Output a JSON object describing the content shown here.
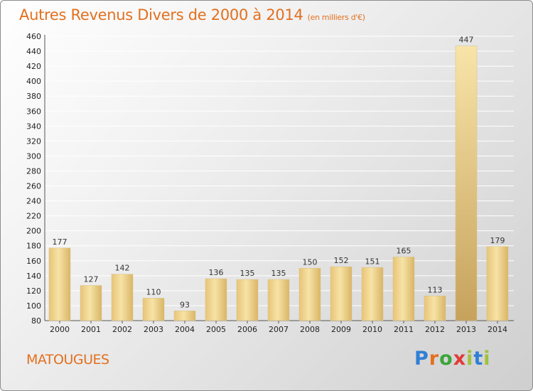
{
  "chart_data": {
    "type": "bar",
    "title": "Autres Revenus Divers de 2000 à 2014",
    "subtitle": "(en milliers d'€)",
    "categories": [
      "2000",
      "2001",
      "2002",
      "2003",
      "2004",
      "2005",
      "2006",
      "2007",
      "2008",
      "2009",
      "2010",
      "2011",
      "2012",
      "2013",
      "2014"
    ],
    "values": [
      177,
      127,
      142,
      110,
      93,
      136,
      135,
      135,
      150,
      152,
      151,
      165,
      113,
      447,
      179
    ],
    "ylim": [
      80,
      460
    ],
    "ytick_step": 20,
    "grid": true,
    "bar_color": "#f0d28a",
    "bar_color_dark": "#c9a45a"
  },
  "location": "MATOUGUES",
  "logo": {
    "text": "Proxiti",
    "parts": [
      "P",
      "r",
      "o",
      "x",
      "i",
      "t",
      "i"
    ]
  },
  "colors": {
    "accent": "#e2701f"
  }
}
